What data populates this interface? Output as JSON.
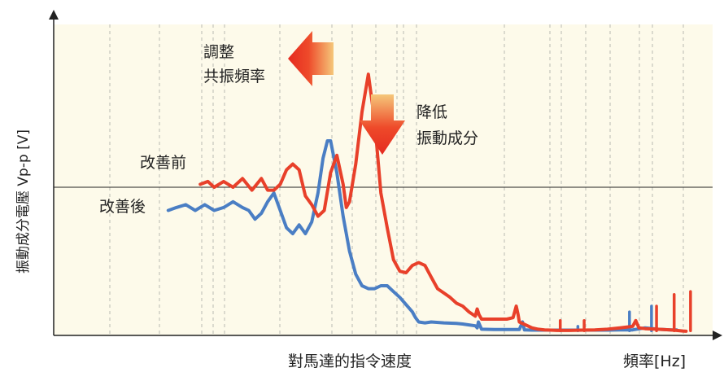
{
  "chart_data": {
    "type": "line",
    "ylabel": "振動成分電壓 Vp-p [V]",
    "xlabel": "頻率[Hz]",
    "x_region_label": "對馬達的指令速度",
    "threshold_value": 0.5,
    "ylim": [
      0,
      1
    ],
    "xlim": [
      0,
      100
    ],
    "grid": "vertical dashed",
    "colors": {
      "before": "#e8402a",
      "after": "#4a7ec4",
      "background": "#fdfaea",
      "axis": "#222222"
    },
    "annotations": {
      "shift_resonance": [
        "調整",
        "共振頻率"
      ],
      "reduce_vibration": [
        "降低",
        "振動成分"
      ]
    },
    "series": [
      {
        "name": "改善前",
        "x": [
          23.3,
          24.5,
          25.5,
          27,
          28.5,
          30,
          31.5,
          33,
          34,
          35,
          36,
          37,
          38,
          39,
          40,
          41,
          42,
          43,
          44,
          45,
          46,
          46.5,
          47,
          48,
          49,
          50,
          51,
          52,
          53,
          54,
          55,
          56,
          57,
          58,
          59,
          60,
          61,
          62,
          63,
          64,
          65,
          66,
          67,
          67.3,
          67.6,
          68,
          70,
          72,
          73,
          73.5,
          73.8,
          74,
          76,
          77,
          78,
          79,
          80,
          82,
          84,
          86,
          88,
          90,
          92,
          92.5,
          93,
          94,
          96,
          98,
          99,
          99.5,
          100,
          100.5
        ],
        "values": [
          0.51,
          0.52,
          0.5,
          0.52,
          0.5,
          0.53,
          0.49,
          0.53,
          0.49,
          0.49,
          0.51,
          0.56,
          0.58,
          0.56,
          0.47,
          0.44,
          0.4,
          0.42,
          0.55,
          0.61,
          0.51,
          0.43,
          0.45,
          0.58,
          0.76,
          0.89,
          0.73,
          0.48,
          0.36,
          0.25,
          0.21,
          0.205,
          0.23,
          0.24,
          0.23,
          0.19,
          0.15,
          0.135,
          0.12,
          0.1,
          0.09,
          0.07,
          0.055,
          0.08,
          0.06,
          0.045,
          0.045,
          0.045,
          0.05,
          0.09,
          0.06,
          0.035,
          0.015,
          0.01,
          0.008,
          0.007,
          0.006,
          0.006,
          0.007,
          0.008,
          0.01,
          0.015,
          0.02,
          0.04,
          0.015,
          0.012,
          0.01,
          0.008,
          0.006,
          0.005,
          0.004,
          0.003
        ],
        "spikes": [
          {
            "x": 80.5,
            "value": 0.04
          },
          {
            "x": 84.3,
            "value": 0.04
          },
          {
            "x": 95.8,
            "value": 0.09
          },
          {
            "x": 98.6,
            "value": 0.13
          },
          {
            "x": 101.2,
            "value": 0.14
          }
        ]
      },
      {
        "name": "改善後",
        "x": [
          18.2,
          19.5,
          21,
          22.5,
          24,
          25.5,
          27,
          28.5,
          30,
          31,
          32,
          33,
          34,
          35,
          36,
          37,
          38,
          39,
          40,
          41,
          42,
          42.8,
          43.5,
          44,
          45,
          46,
          47,
          48,
          49,
          50,
          51,
          52,
          53,
          54,
          55,
          56,
          57,
          57.5,
          58,
          59,
          60,
          62,
          64,
          65,
          66,
          67,
          67.3,
          67.5,
          68,
          70,
          72,
          74,
          74.5,
          74.8,
          75,
          76,
          78,
          80,
          82,
          84,
          86,
          88,
          90,
          92,
          94,
          96,
          98,
          99
        ],
        "values": [
          0.42,
          0.43,
          0.44,
          0.42,
          0.44,
          0.42,
          0.43,
          0.45,
          0.43,
          0.42,
          0.39,
          0.41,
          0.45,
          0.48,
          0.42,
          0.36,
          0.34,
          0.37,
          0.34,
          0.38,
          0.48,
          0.6,
          0.66,
          0.66,
          0.55,
          0.4,
          0.28,
          0.2,
          0.16,
          0.15,
          0.15,
          0.16,
          0.16,
          0.14,
          0.12,
          0.095,
          0.07,
          0.05,
          0.035,
          0.032,
          0.035,
          0.032,
          0.03,
          0.028,
          0.025,
          0.022,
          0.015,
          0.035,
          0.01,
          0.009,
          0.009,
          0.009,
          0.035,
          0.008,
          0.008,
          0.007,
          0.007,
          0.007,
          0.007,
          0.007,
          0.007,
          0.007,
          0.008,
          0.008,
          0.015,
          0.01,
          0.008,
          0.008
        ],
        "spikes": [
          {
            "x": 83.3,
            "value": 0.02
          },
          {
            "x": 91.5,
            "value": 0.07
          },
          {
            "x": 95.0,
            "value": 0.09
          }
        ]
      }
    ]
  }
}
